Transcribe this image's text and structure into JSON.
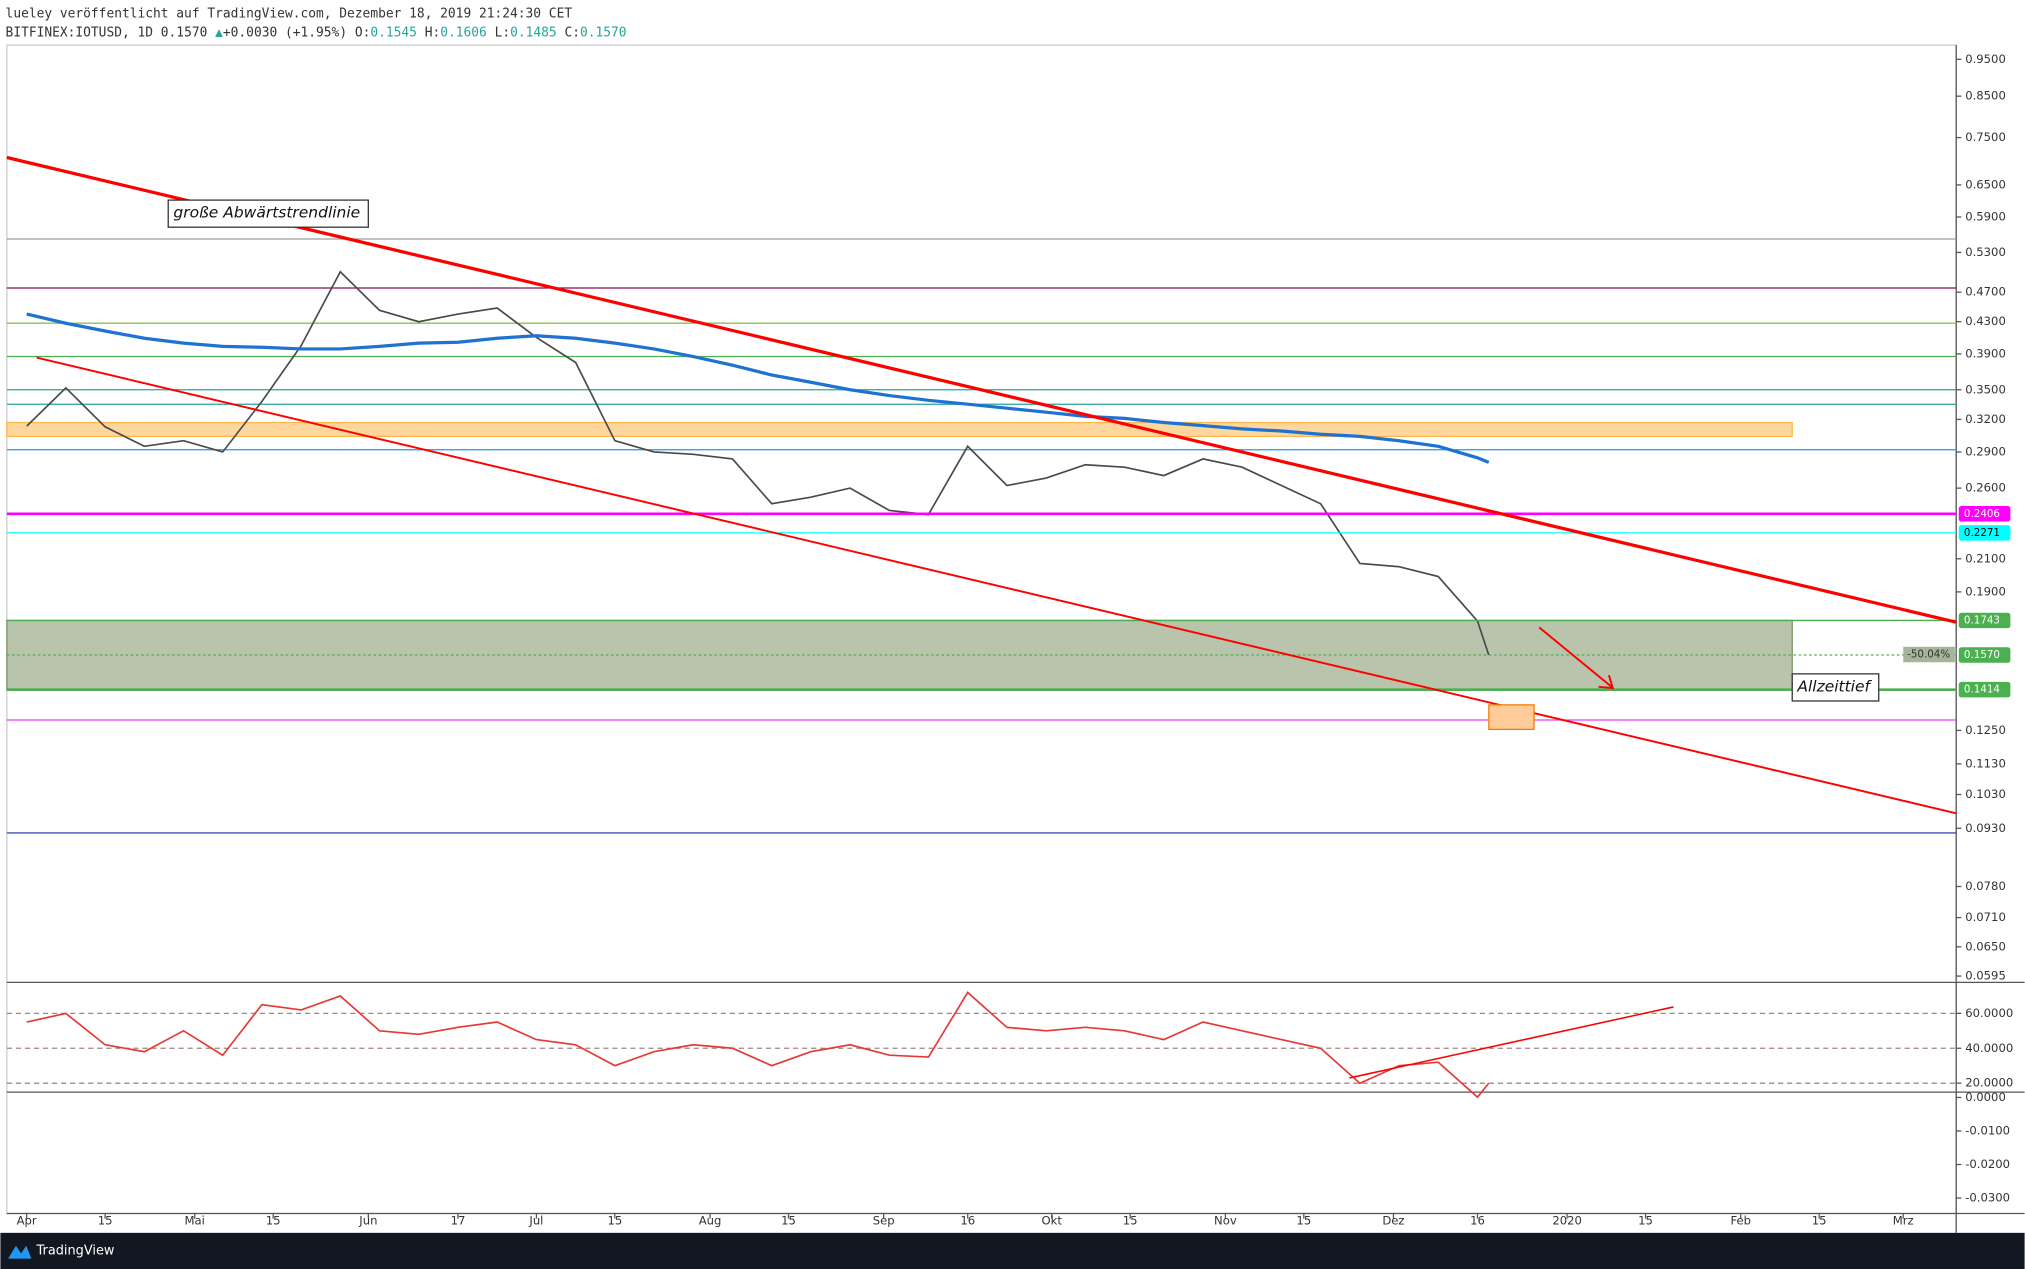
{
  "header": {
    "line1": "lueley veröffentlicht auf TradingView.com, Dezember 18, 2019 21:24:30 CET",
    "symbol": "BITFINEX:IOTUSD, 1D",
    "last": "0.1570",
    "arrow": "▲",
    "change": "+0.0030",
    "pct": "(+1.95%)",
    "o_label": "O:",
    "o": "0.1545",
    "h_label": "H:",
    "h": "0.1606",
    "l_label": "L:",
    "l": "0.1485",
    "c_label": "C:",
    "c": "0.1570"
  },
  "footer": {
    "brand": "TradingView"
  },
  "chart_data": [
    {
      "type": "line",
      "log_scale": true,
      "ylim": [
        0.0586,
        0.9916
      ],
      "xlim": [
        "2019-03-28",
        "2020-03-10"
      ],
      "yticks": [
        {
          "value": 0.95,
          "label": "0.9500"
        },
        {
          "value": 0.85,
          "label": "0.8500"
        },
        {
          "value": 0.75,
          "label": "0.7500"
        },
        {
          "value": 0.65,
          "label": "0.6500"
        },
        {
          "value": 0.59,
          "label": "0.5900"
        },
        {
          "value": 0.53,
          "label": "0.5300"
        },
        {
          "value": 0.47,
          "label": "0.4700"
        },
        {
          "value": 0.43,
          "label": "0.4300"
        },
        {
          "value": 0.39,
          "label": "0.3900"
        },
        {
          "value": 0.35,
          "label": "0.3500"
        },
        {
          "value": 0.32,
          "label": "0.3200"
        },
        {
          "value": 0.29,
          "label": "0.2900"
        },
        {
          "value": 0.26,
          "label": "0.2600"
        },
        {
          "value": 0.21,
          "label": "0.2100"
        },
        {
          "value": 0.19,
          "label": "0.1900"
        },
        {
          "value": 0.125,
          "label": "0.1250"
        },
        {
          "value": 0.113,
          "label": "0.1130"
        },
        {
          "value": 0.103,
          "label": "0.1030"
        },
        {
          "value": 0.093,
          "label": "0.0930"
        },
        {
          "value": 0.078,
          "label": "0.0780"
        },
        {
          "value": 0.071,
          "label": "0.0710"
        },
        {
          "value": 0.065,
          "label": "0.0650"
        },
        {
          "value": 0.0595,
          "label": "0.0595"
        }
      ],
      "xticks": [
        {
          "value": "2019-04-01",
          "label": "Apr"
        },
        {
          "value": "2019-04-15",
          "label": "15"
        },
        {
          "value": "2019-05-01",
          "label": "Mai"
        },
        {
          "value": "2019-05-15",
          "label": "15"
        },
        {
          "value": "2019-06-01",
          "label": "Jun"
        },
        {
          "value": "2019-06-17",
          "label": "17"
        },
        {
          "value": "2019-07-01",
          "label": "Jul"
        },
        {
          "value": "2019-07-15",
          "label": "15"
        },
        {
          "value": "2019-08-01",
          "label": "Aug"
        },
        {
          "value": "2019-08-15",
          "label": "15"
        },
        {
          "value": "2019-09-01",
          "label": "Sep"
        },
        {
          "value": "2019-09-16",
          "label": "16"
        },
        {
          "value": "2019-10-01",
          "label": "Okt"
        },
        {
          "value": "2019-10-15",
          "label": "15"
        },
        {
          "value": "2019-11-01",
          "label": "Nov"
        },
        {
          "value": "2019-11-15",
          "label": "15"
        },
        {
          "value": "2019-12-01",
          "label": "Dez"
        },
        {
          "value": "2019-12-16",
          "label": "16"
        },
        {
          "value": "2020-01-01",
          "label": "2020"
        },
        {
          "value": "2020-01-15",
          "label": "15"
        },
        {
          "value": "2020-02-01",
          "label": "Feb"
        },
        {
          "value": "2020-02-15",
          "label": "15"
        },
        {
          "value": "2020-03-01",
          "label": "Mrz"
        }
      ],
      "x": [
        "2019-04-01",
        "2019-04-08",
        "2019-04-15",
        "2019-04-22",
        "2019-04-29",
        "2019-05-06",
        "2019-05-13",
        "2019-05-20",
        "2019-05-27",
        "2019-06-03",
        "2019-06-10",
        "2019-06-17",
        "2019-06-24",
        "2019-07-01",
        "2019-07-08",
        "2019-07-15",
        "2019-07-22",
        "2019-07-29",
        "2019-08-05",
        "2019-08-12",
        "2019-08-19",
        "2019-08-26",
        "2019-09-02",
        "2019-09-09",
        "2019-09-16",
        "2019-09-23",
        "2019-09-30",
        "2019-10-07",
        "2019-10-14",
        "2019-10-21",
        "2019-10-28",
        "2019-11-04",
        "2019-11-11",
        "2019-11-18",
        "2019-11-25",
        "2019-12-02",
        "2019-12-09",
        "2019-12-16",
        "2019-12-18"
      ],
      "series": [
        {
          "color": "#4a4a4a",
          "values": [
            0.3135,
            0.352,
            0.313,
            0.295,
            0.3,
            0.29,
            0.338,
            0.4,
            0.5,
            0.445,
            0.43,
            0.44,
            0.448,
            0.41,
            0.38,
            0.3,
            0.29,
            0.288,
            0.284,
            0.248,
            0.253,
            0.26,
            0.243,
            0.24,
            0.295,
            0.262,
            0.268,
            0.279,
            0.277,
            0.27,
            0.284,
            0.277,
            0.262,
            0.248,
            0.207,
            0.205,
            0.199,
            0.174,
            0.157
          ]
        },
        {
          "color": "#1e73d2",
          "values": [
            0.44,
            0.428,
            0.418,
            0.409,
            0.403,
            0.399,
            0.398,
            0.396,
            0.396,
            0.399,
            0.403,
            0.404,
            0.409,
            0.412,
            0.409,
            0.403,
            0.396,
            0.387,
            0.377,
            0.366,
            0.358,
            0.35,
            0.344,
            0.339,
            0.335,
            0.331,
            0.327,
            0.323,
            0.321,
            0.317,
            0.314,
            0.311,
            0.309,
            0.306,
            0.304,
            0.3,
            0.295,
            0.285,
            0.281
          ]
        }
      ],
      "levels": [
        {
          "value": 0.552,
          "color": "#9e9e9e"
        },
        {
          "value": 0.476,
          "color": "#880e4f"
        },
        {
          "value": 0.428,
          "color": "#8bc34a"
        },
        {
          "value": 0.387,
          "color": "#4caf50"
        },
        {
          "value": 0.35,
          "color": "#26a69a"
        },
        {
          "value": 0.335,
          "color": "#26a69a"
        },
        {
          "value": 0.292,
          "color": "#2196f3"
        },
        {
          "value": 0.129,
          "color": "#e040fb"
        },
        {
          "value": 0.0917,
          "color": "#3f51b5"
        }
      ],
      "price_labels": [
        {
          "value": 0.2406,
          "label": "0.2406",
          "color": "#ff00ff"
        },
        {
          "value": 0.2271,
          "label": "0.2271",
          "color": "#00ffff"
        },
        {
          "value": 0.1743,
          "label": "0.1743",
          "color": "#4caf50"
        },
        {
          "value": 0.157,
          "label": "0.1570",
          "color": "#4caf50"
        },
        {
          "value": 0.1414,
          "label": "0.1414",
          "color": "#4caf50"
        }
      ],
      "zones": [
        {
          "from": 0.1414,
          "to": 0.1743,
          "color": "#7d9467"
        },
        {
          "from": 0.304,
          "to": 0.317,
          "color": "#ffb74d"
        }
      ],
      "annotations": {
        "trendline": "große Abwärtstrendlinie",
        "ath": "Allzeittief",
        "drop": "-50.04%"
      }
    },
    {
      "type": "line",
      "grid": true,
      "ylim": [
        15.6,
        77
      ],
      "yticks": [
        {
          "value": 60,
          "label": "60.0000"
        },
        {
          "value": 40,
          "label": "40.0000"
        },
        {
          "value": 20,
          "label": "20.0000"
        }
      ],
      "series": [
        {
          "color": "#e53935",
          "values": [
            55,
            60,
            42,
            38,
            50,
            36,
            65,
            62,
            70,
            50,
            48,
            52,
            55,
            45,
            42,
            30,
            38,
            42,
            40,
            30,
            38,
            42,
            36,
            35,
            72,
            52,
            50,
            52,
            50,
            45,
            55,
            50,
            45,
            40,
            20,
            30,
            32,
            12,
            20
          ]
        }
      ]
    },
    {
      "type": "line",
      "ylim": [
        -0.0346,
        0.0012
      ],
      "yticks": [
        {
          "value": 0,
          "label": "0.0000"
        },
        {
          "value": -0.01,
          "label": "-0.0100"
        },
        {
          "value": -0.02,
          "label": "-0.0200"
        },
        {
          "value": -0.03,
          "label": "-0.0300"
        }
      ],
      "series": []
    }
  ]
}
